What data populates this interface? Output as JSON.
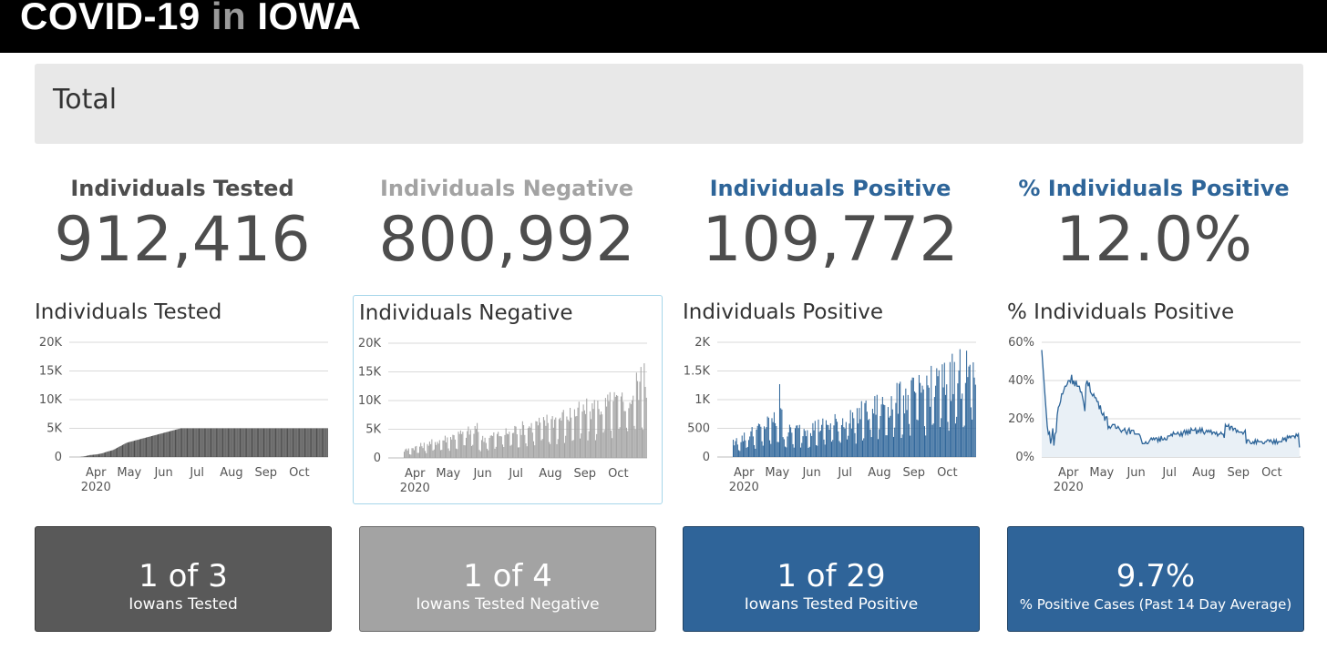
{
  "header": {
    "brand_main": "COVID-19",
    "brand_in": "in",
    "brand_state": "IOWA"
  },
  "total": {
    "title": "Total"
  },
  "colors": {
    "tested": "#4d4d4d",
    "negative": "#a3a3a3",
    "positive": "#2e6599",
    "pct": "#2e6599",
    "card_tested": "#595959",
    "card_negative": "#a3a3a3",
    "card_positive": "#2f6499",
    "card_pct": "#2f6499"
  },
  "stats": [
    {
      "label": "Individuals Tested",
      "value": "912,416"
    },
    {
      "label": "Individuals Negative",
      "value": "800,992"
    },
    {
      "label": "Individuals Positive",
      "value": "109,772"
    },
    {
      "label": "% Individuals Positive",
      "value": "12.0%"
    }
  ],
  "cards": [
    {
      "big": "1 of 3",
      "small": "Iowans Tested"
    },
    {
      "big": "1 of 4",
      "small": "Iowans Tested Negative"
    },
    {
      "big": "1 of 29",
      "small": "Iowans Tested Positive"
    },
    {
      "big": "9.7%",
      "small": "% Positive Cases (Past 14 Day Average)"
    }
  ],
  "chart_data": [
    {
      "type": "bar",
      "title": "Individuals Tested",
      "x_range": [
        "2020-03-08",
        "2020-10-27"
      ],
      "x_ticks": [
        "Apr",
        "May",
        "Jun",
        "Jul",
        "Aug",
        "Sep",
        "Oct"
      ],
      "x_year_label": "2020",
      "y_ticks": [
        "0",
        "5K",
        "10K",
        "15K",
        "20K"
      ],
      "ylim": [
        0,
        20000
      ],
      "grid": true,
      "series": [
        {
          "values": [
            0,
            0,
            0,
            0,
            0,
            0,
            0,
            0,
            0,
            0,
            25,
            50,
            75,
            100,
            140,
            180,
            220,
            260,
            300,
            350,
            360,
            380,
            400,
            420,
            440,
            460,
            500,
            520,
            560,
            600,
            640,
            700,
            760,
            820,
            880,
            950,
            1000,
            1050,
            1100,
            1150,
            1200,
            1300,
            1400,
            1500,
            1600,
            1700,
            1800,
            1900,
            2000,
            2100,
            2200,
            2300,
            2400,
            2500,
            2550,
            2600,
            2650,
            2700,
            2750,
            2800,
            2850,
            2900,
            2950,
            3000,
            3050,
            3100,
            3150,
            3200,
            3250,
            3300,
            3350,
            3400,
            3450,
            3500,
            3550,
            3600,
            3650,
            3700,
            3750,
            3800,
            3850,
            3900,
            3950,
            4000,
            4050,
            4100,
            4150,
            4200,
            4250,
            4300,
            4350,
            4400,
            4450,
            4500,
            4550,
            4600,
            4650,
            4700,
            4750,
            4800,
            4850,
            4900,
            4950,
            5000,
            5000,
            5000,
            5000,
            5000,
            5000,
            5000,
            5000,
            5000,
            5000,
            5000,
            5000,
            5000,
            5000,
            5000,
            5000,
            5000,
            5000,
            5000,
            5000,
            5000,
            5000,
            5000,
            5000,
            5000,
            5000,
            5000,
            5000,
            5000,
            5000,
            5000,
            5000,
            5000,
            5000,
            5000,
            5000,
            5000,
            5000,
            5000,
            5000,
            5000,
            5000,
            5000,
            5000,
            5000,
            5000,
            5000,
            5000,
            5000,
            5000,
            5000,
            5000,
            5000,
            5000,
            5000,
            5000,
            5000,
            5000,
            5000,
            5000,
            5000,
            5000,
            5000,
            5000,
            5000,
            5000,
            5000,
            5000,
            5000,
            5000,
            5000,
            5000,
            5000,
            5000,
            5000,
            5000,
            5000,
            5000,
            5000,
            5000,
            5000,
            5000,
            5000,
            5000,
            5000,
            5000,
            5000,
            5000,
            5000,
            5000,
            5000,
            5000,
            5000,
            5000,
            5000,
            5000,
            5000,
            5000,
            5000,
            5000,
            5000,
            5000,
            5000,
            5000,
            5000,
            5000,
            5000,
            5000,
            5000,
            5000,
            5000,
            5000,
            5000,
            5000,
            5000,
            5000,
            5000,
            5000,
            5000,
            5000,
            5000,
            5000,
            5000,
            5000,
            5000,
            5000,
            5000,
            5000,
            5000,
            5000,
            5000,
            5000,
            5000,
            5000,
            5000,
            5000,
            5000
          ]
        }
      ]
    },
    {
      "type": "bar",
      "title": "Individuals Negative",
      "x_range": [
        "2020-03-08",
        "2020-10-27"
      ],
      "x_ticks": [
        "Apr",
        "May",
        "Jun",
        "Jul",
        "Aug",
        "Sep",
        "Oct"
      ],
      "x_year_label": "2020",
      "y_ticks": [
        "0",
        "5K",
        "10K",
        "15K",
        "20K"
      ],
      "ylim": [
        0,
        20000
      ],
      "grid": true,
      "series": [
        {
          "values": []
        }
      ]
    },
    {
      "type": "bar",
      "title": "Individuals Positive",
      "x_range": [
        "2020-03-08",
        "2020-10-27"
      ],
      "x_ticks": [
        "Apr",
        "May",
        "Jun",
        "Jul",
        "Aug",
        "Sep",
        "Oct"
      ],
      "x_year_label": "2020",
      "y_ticks": [
        "0",
        "500",
        "1K",
        "1.5K",
        "2K"
      ],
      "ylim": [
        0,
        2000
      ],
      "grid": true,
      "series": [
        {
          "values": []
        }
      ]
    },
    {
      "type": "area",
      "title": "% Individuals Positive",
      "x_range": [
        "2020-03-08",
        "2020-10-27"
      ],
      "x_ticks": [
        "Apr",
        "May",
        "Jun",
        "Jul",
        "Aug",
        "Sep",
        "Oct"
      ],
      "x_year_label": "2020",
      "y_ticks": [
        "0%",
        "20%",
        "40%",
        "60%"
      ],
      "ylim": [
        0,
        60
      ],
      "grid": true,
      "series": [
        {
          "values": []
        }
      ]
    }
  ]
}
